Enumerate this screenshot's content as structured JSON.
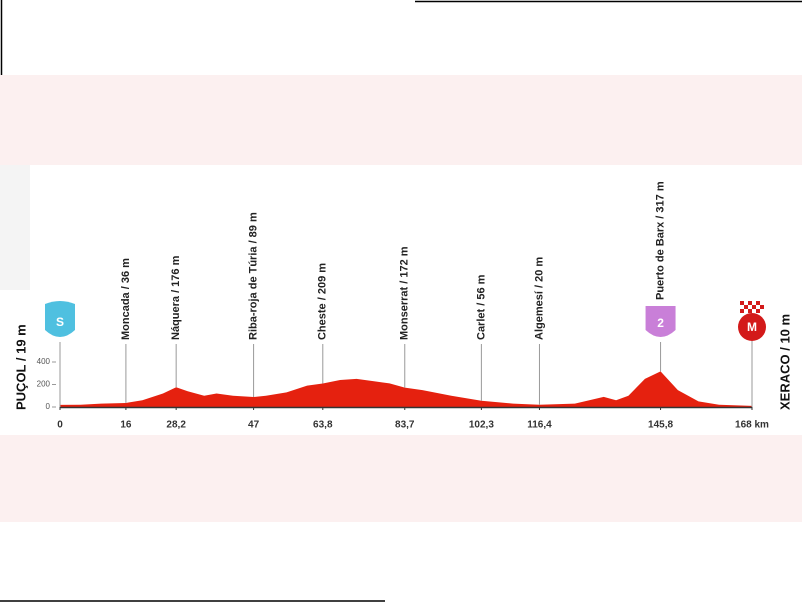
{
  "chart_data": {
    "type": "area",
    "color": "#e5210f",
    "x": [
      0,
      5,
      10,
      16,
      20,
      25,
      28.2,
      31,
      35,
      38,
      42,
      47,
      50,
      55,
      60,
      63.8,
      68,
      72,
      76,
      80,
      83.7,
      88,
      95,
      102.3,
      110,
      116.4,
      125,
      132,
      135,
      138,
      142,
      145.8,
      150,
      155,
      160,
      168
    ],
    "values": [
      19,
      20,
      30,
      36,
      60,
      120,
      176,
      140,
      100,
      120,
      100,
      89,
      100,
      130,
      190,
      209,
      240,
      250,
      230,
      210,
      172,
      150,
      100,
      56,
      30,
      20,
      30,
      90,
      60,
      100,
      250,
      317,
      150,
      50,
      20,
      10
    ],
    "xlim": [
      0,
      168
    ],
    "ylim": [
      0,
      400
    ],
    "xticks": [
      0,
      16,
      {
        "value": 28.2,
        "label": "28,2"
      },
      47,
      {
        "value": 63.8,
        "label": "63,8"
      },
      {
        "value": 83.7,
        "label": "83,7"
      },
      {
        "value": 102.3,
        "label": "102,3"
      },
      {
        "value": 116.4,
        "label": "116,4"
      },
      {
        "value": 145.8,
        "label": "145,8"
      },
      {
        "value": 168,
        "label": "168 km"
      }
    ],
    "yticks": [
      0,
      200,
      400
    ],
    "start": {
      "label": "PUÇOL / 19 m",
      "badge": "S"
    },
    "finish": {
      "label": "XERACO / 10 m",
      "badge": "M"
    },
    "waypoints": {
      "km": [
        16,
        28.2,
        47,
        63.8,
        83.7,
        102.3,
        116.4,
        145.8
      ],
      "altitudes": [
        36,
        176,
        89,
        209,
        172,
        56,
        20,
        317
      ],
      "labels": [
        "Moncada / 36 m",
        "Náquera / 176 m",
        "Riba-roja de Túria / 89 m",
        "Cheste / 209 m",
        "Monserrat / 172 m",
        "Carlet / 56 m",
        "Algemesí / 20 m",
        "Puerto de Barx / 317 m"
      ],
      "badges": [
        null,
        null,
        null,
        null,
        null,
        null,
        null,
        "2"
      ]
    }
  }
}
